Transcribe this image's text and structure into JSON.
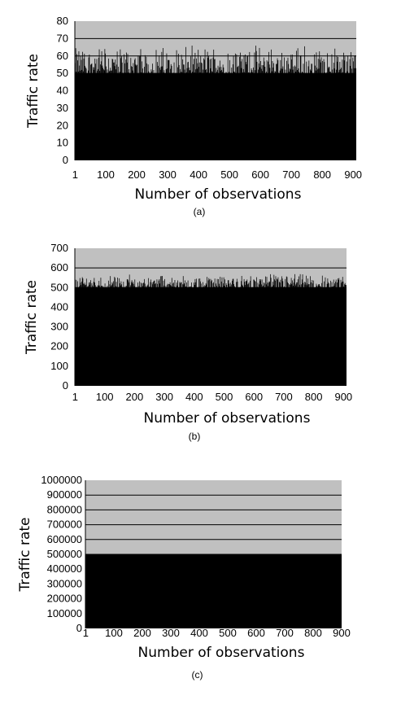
{
  "chart_data": [
    {
      "type": "bar",
      "ylabel": "Traffic rate",
      "xlabel": "Number of observations",
      "caption": "(a)",
      "ylim": [
        0,
        80
      ],
      "yticks": [
        0,
        10,
        20,
        30,
        40,
        50,
        60,
        70,
        80
      ],
      "xticks": [
        1,
        100,
        200,
        300,
        400,
        500,
        600,
        700,
        800,
        900
      ],
      "xmax": 910,
      "grid": true,
      "n_observations": 910,
      "base_value": 50,
      "fluctuation_range": [
        44,
        67
      ]
    },
    {
      "type": "bar",
      "ylabel": "Traffic rate",
      "xlabel": "Number of observations",
      "caption": "(b)",
      "ylim": [
        0,
        700
      ],
      "yticks": [
        0,
        100,
        200,
        300,
        400,
        500,
        600,
        700
      ],
      "xticks": [
        1,
        100,
        200,
        300,
        400,
        500,
        600,
        700,
        800,
        900
      ],
      "xmax": 910,
      "grid": true,
      "n_observations": 910,
      "base_value": 500,
      "fluctuation_range": [
        490,
        575
      ]
    },
    {
      "type": "bar",
      "ylabel": "Traffic rate",
      "xlabel": "Number of observations",
      "caption": "(c)",
      "ylim": [
        0,
        1000000
      ],
      "yticks": [
        0,
        100000,
        200000,
        300000,
        400000,
        500000,
        600000,
        700000,
        800000,
        900000,
        1000000
      ],
      "xticks": [
        1,
        100,
        200,
        300,
        400,
        500,
        600,
        700,
        800,
        900
      ],
      "xmax": 900,
      "grid": true,
      "n_observations": 900,
      "base_value": 500000,
      "fluctuation_range": [
        500000,
        500000
      ]
    }
  ],
  "colors": {
    "plot_background": "#c0c0c0",
    "bars": "#000000",
    "gridline": "#000000"
  }
}
